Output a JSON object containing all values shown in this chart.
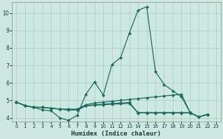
{
  "xlabel": "Humidex (Indice chaleur)",
  "bg_color": "#cde8e0",
  "grid_color": "#aecfc7",
  "line_color": "#1a6b5e",
  "xlim": [
    -0.5,
    23.5
  ],
  "ylim": [
    3.8,
    10.6
  ],
  "yticks": [
    4,
    5,
    6,
    7,
    8,
    9,
    10
  ],
  "xticks": [
    0,
    1,
    2,
    3,
    4,
    5,
    6,
    7,
    8,
    9,
    10,
    11,
    12,
    13,
    14,
    15,
    16,
    17,
    18,
    19,
    20,
    21,
    22,
    23
  ],
  "xtick_labels": [
    "0",
    "1",
    "2",
    "3",
    "4",
    "5",
    "6",
    "7",
    "8",
    "9",
    "10",
    "11",
    "12",
    "13",
    "14",
    "15",
    "16",
    "17",
    "18",
    "19",
    "20",
    "21",
    "22",
    "23"
  ],
  "series1_x": [
    0,
    1,
    2,
    3,
    4,
    5,
    6,
    7,
    8,
    9,
    10,
    11,
    12,
    13,
    14,
    15,
    16,
    17,
    18,
    19,
    20,
    21,
    22
  ],
  "series1_y": [
    4.9,
    4.7,
    4.6,
    4.45,
    4.4,
    4.0,
    3.85,
    4.15,
    5.35,
    6.05,
    5.3,
    7.05,
    7.45,
    8.85,
    10.15,
    10.35,
    6.65,
    5.9,
    5.55,
    5.2,
    4.3,
    4.05,
    4.2
  ],
  "series2_x": [
    0,
    1,
    2,
    3,
    4,
    5,
    6,
    7,
    8,
    9,
    10,
    11,
    12,
    13,
    14,
    15,
    16,
    17,
    18,
    19,
    20,
    21,
    22
  ],
  "series2_y": [
    4.9,
    4.7,
    4.6,
    4.6,
    4.55,
    4.5,
    4.5,
    4.5,
    4.75,
    4.85,
    4.9,
    4.95,
    5.0,
    5.05,
    5.1,
    5.15,
    5.2,
    5.25,
    5.3,
    5.35,
    4.3,
    4.05,
    4.2
  ],
  "series3_x": [
    0,
    1,
    2,
    3,
    4,
    5,
    6,
    7,
    8,
    9,
    10,
    11,
    12,
    13,
    14,
    15,
    16,
    17,
    18,
    19,
    20,
    21,
    22
  ],
  "series3_y": [
    4.9,
    4.7,
    4.6,
    4.6,
    4.55,
    4.5,
    4.45,
    4.45,
    4.7,
    4.75,
    4.78,
    4.82,
    4.85,
    4.88,
    4.3,
    4.3,
    4.3,
    4.3,
    4.3,
    4.3,
    4.3,
    4.05,
    4.2
  ],
  "series4_x": [
    0,
    1,
    2,
    3,
    4,
    5,
    6,
    7,
    8,
    9,
    10,
    11,
    12,
    13,
    14,
    15,
    16,
    17,
    18,
    19,
    20,
    21,
    22
  ],
  "series4_y": [
    4.9,
    4.7,
    4.6,
    4.6,
    4.55,
    4.5,
    4.45,
    4.45,
    4.68,
    4.72,
    4.75,
    4.78,
    4.8,
    4.83,
    4.28,
    4.28,
    4.28,
    4.28,
    4.28,
    4.28,
    4.28,
    4.05,
    4.2
  ]
}
